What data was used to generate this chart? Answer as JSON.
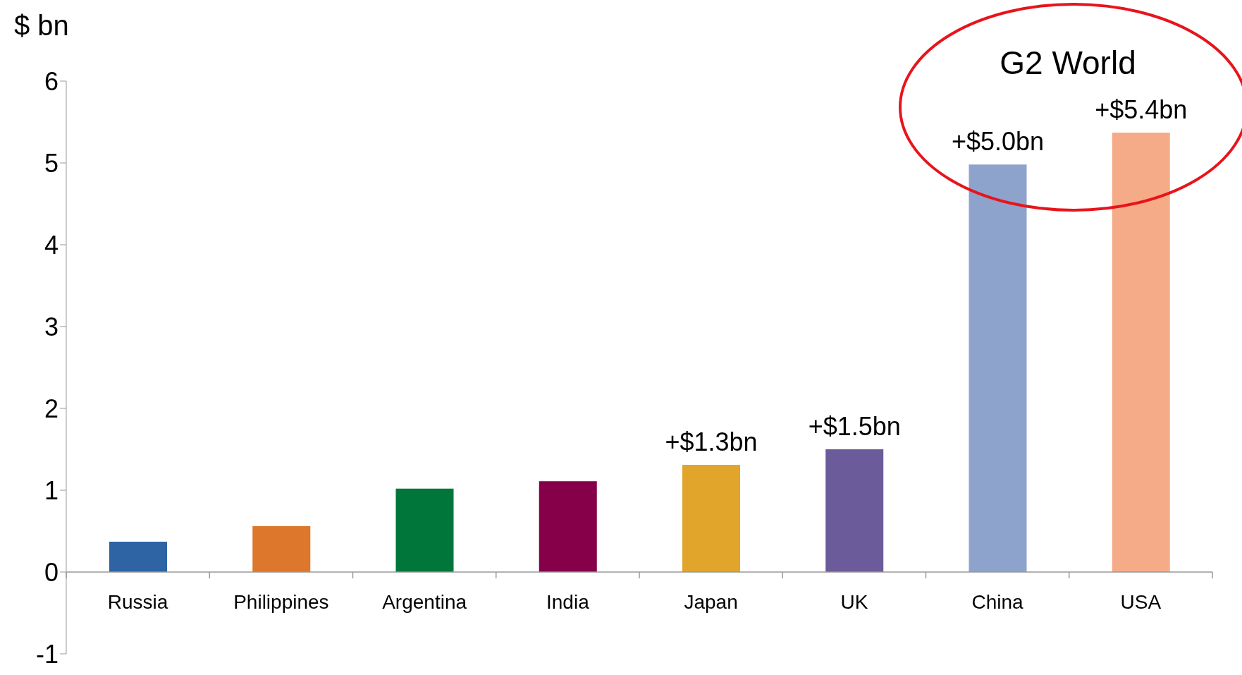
{
  "chart_data": {
    "type": "bar",
    "ylabel": "$ bn",
    "categories": [
      "Russia",
      "Philippines",
      "Argentina",
      "India",
      "Japan",
      "UK",
      "China",
      "USA"
    ],
    "values": [
      0.37,
      0.56,
      1.02,
      1.11,
      1.31,
      1.5,
      4.98,
      5.37
    ],
    "colors": [
      "#2e64a4",
      "#dd772b",
      "#00763a",
      "#850049",
      "#e2a52c",
      "#6c5b9a",
      "#8ea3cc",
      "#f6ab88"
    ],
    "value_labels": [
      null,
      null,
      null,
      null,
      "+$1.3bn",
      "+$1.5bn",
      "+$5.0bn",
      "+$5.4bn"
    ],
    "annotations": [
      "G2 World"
    ],
    "ylim": [
      -1,
      6
    ],
    "yticks": [
      -1,
      0,
      1,
      2,
      3,
      4,
      5,
      6
    ],
    "grid": false,
    "legend": false
  }
}
